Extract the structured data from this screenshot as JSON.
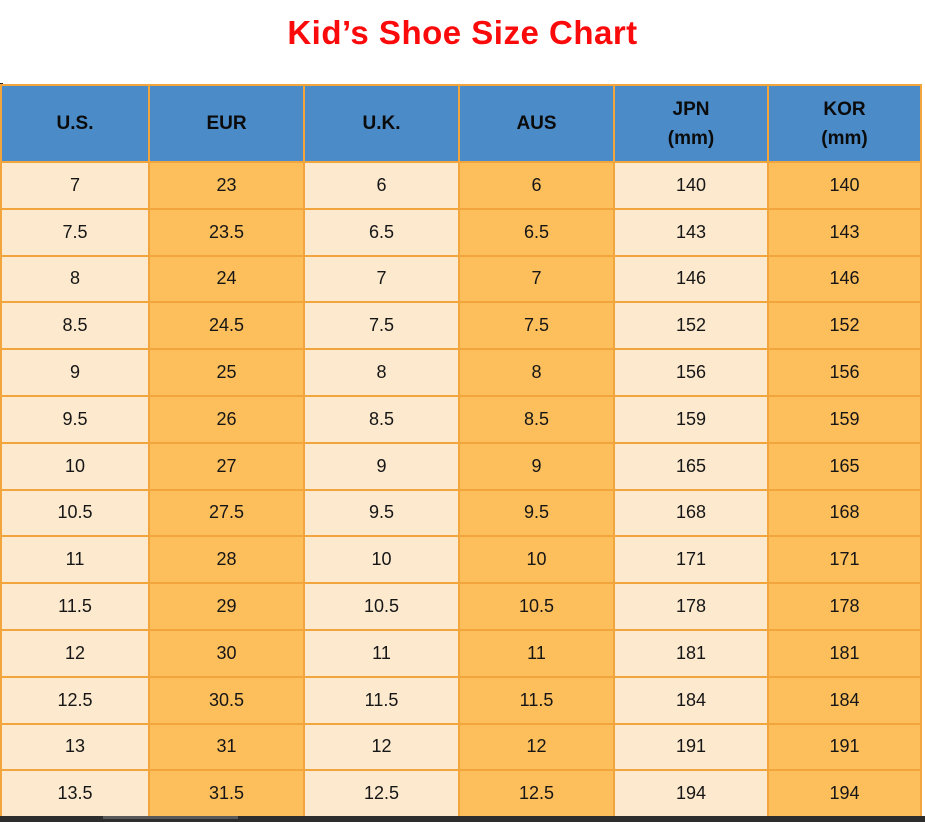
{
  "title": "Kid’s Shoe Size Chart",
  "colors": {
    "title_red": "#FA0A0A",
    "header_blue": "#4A8BC8",
    "column_cream": "#FCE9CE",
    "column_orange": "#FDBE5C",
    "grid_orange": "#F2A53C",
    "bottom_bar_dark": "#2D2D2D"
  },
  "chart_data": {
    "type": "table",
    "title": "Kid’s Shoe Size Chart",
    "columns": [
      {
        "label": "U.S.",
        "sub": ""
      },
      {
        "label": "EUR",
        "sub": ""
      },
      {
        "label": "U.K.",
        "sub": ""
      },
      {
        "label": "AUS",
        "sub": ""
      },
      {
        "label": "JPN",
        "sub": "(mm)"
      },
      {
        "label": "KOR",
        "sub": "(mm)"
      }
    ],
    "rows": [
      [
        "7",
        "23",
        "6",
        "6",
        "140",
        "140"
      ],
      [
        "7.5",
        "23.5",
        "6.5",
        "6.5",
        "143",
        "143"
      ],
      [
        "8",
        "24",
        "7",
        "7",
        "146",
        "146"
      ],
      [
        "8.5",
        "24.5",
        "7.5",
        "7.5",
        "152",
        "152"
      ],
      [
        "9",
        "25",
        "8",
        "8",
        "156",
        "156"
      ],
      [
        "9.5",
        "26",
        "8.5",
        "8.5",
        "159",
        "159"
      ],
      [
        "10",
        "27",
        "9",
        "9",
        "165",
        "165"
      ],
      [
        "10.5",
        "27.5",
        "9.5",
        "9.5",
        "168",
        "168"
      ],
      [
        "11",
        "28",
        "10",
        "10",
        "171",
        "171"
      ],
      [
        "11.5",
        "29",
        "10.5",
        "10.5",
        "178",
        "178"
      ],
      [
        "12",
        "30",
        "11",
        "11",
        "181",
        "181"
      ],
      [
        "12.5",
        "30.5",
        "11.5",
        "11.5",
        "184",
        "184"
      ],
      [
        "13",
        "31",
        "12",
        "12",
        "191",
        "191"
      ],
      [
        "13.5",
        "31.5",
        "12.5",
        "12.5",
        "194",
        "194"
      ]
    ],
    "layout": {
      "grid": "on",
      "column_fill_pattern": [
        "cream",
        "orange",
        "cream",
        "orange",
        "cream",
        "orange"
      ]
    }
  }
}
